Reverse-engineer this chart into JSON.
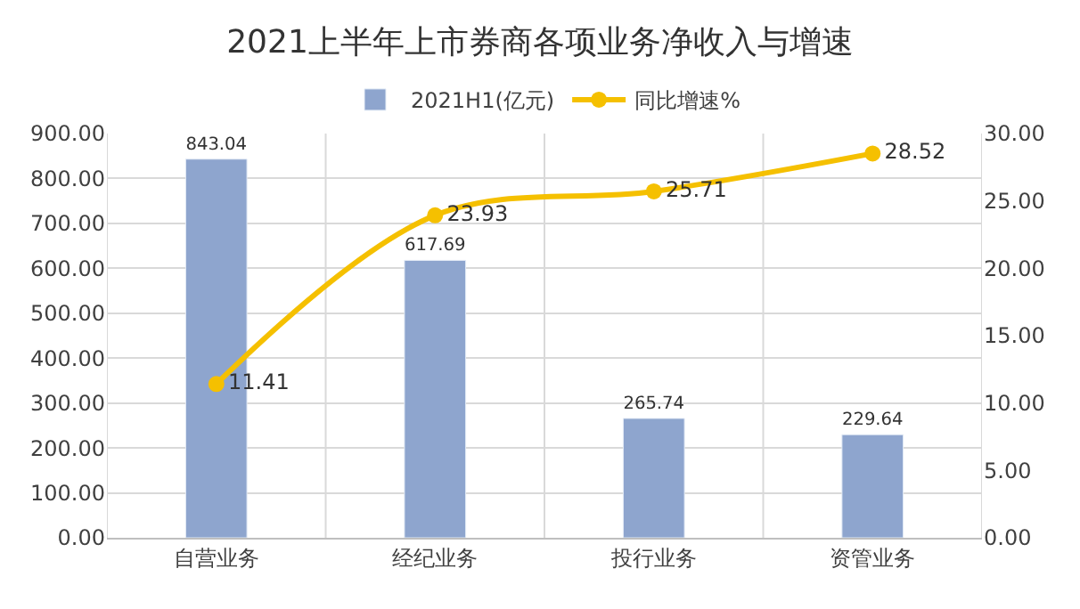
{
  "chart_data": {
    "type": "bar",
    "title": "2021上半年上市券商各项业务净收入与增速",
    "categories": [
      "自营业务",
      "经纪业务",
      "投行业务",
      "资管业务"
    ],
    "series": [
      {
        "name": "2021H1(亿元)",
        "color": "#8ea5ce",
        "values": [
          843.04,
          617.69,
          265.74,
          229.64
        ]
      },
      {
        "name": "同比增速%",
        "type": "line",
        "axis": "y2",
        "color": "#f5c000",
        "values": [
          11.41,
          23.93,
          25.71,
          28.52
        ]
      }
    ],
    "data_labels": true,
    "legend": "top",
    "grid": true,
    "marker": "circle",
    "line_style": "solid",
    "ylim": [
      0,
      900
    ],
    "yticks": [
      {
        "value": 0,
        "label": "0.00"
      },
      {
        "value": 100,
        "label": "100.00"
      },
      {
        "value": 200,
        "label": "200.00"
      },
      {
        "value": 300,
        "label": "300.00"
      },
      {
        "value": 400,
        "label": "400.00"
      },
      {
        "value": 500,
        "label": "500.00"
      },
      {
        "value": 600,
        "label": "600.00"
      },
      {
        "value": 700,
        "label": "700.00"
      },
      {
        "value": 800,
        "label": "800.00"
      },
      {
        "value": 900,
        "label": "900.00"
      }
    ],
    "y2lim": [
      0,
      30
    ],
    "y2ticks": [
      {
        "value": 0,
        "label": "0.00"
      },
      {
        "value": 5,
        "label": "5.00"
      },
      {
        "value": 10,
        "label": "10.00"
      },
      {
        "value": 15,
        "label": "15.00"
      },
      {
        "value": 20,
        "label": "20.00"
      },
      {
        "value": 25,
        "label": "25.00"
      },
      {
        "value": 30,
        "label": "30.00"
      }
    ]
  }
}
